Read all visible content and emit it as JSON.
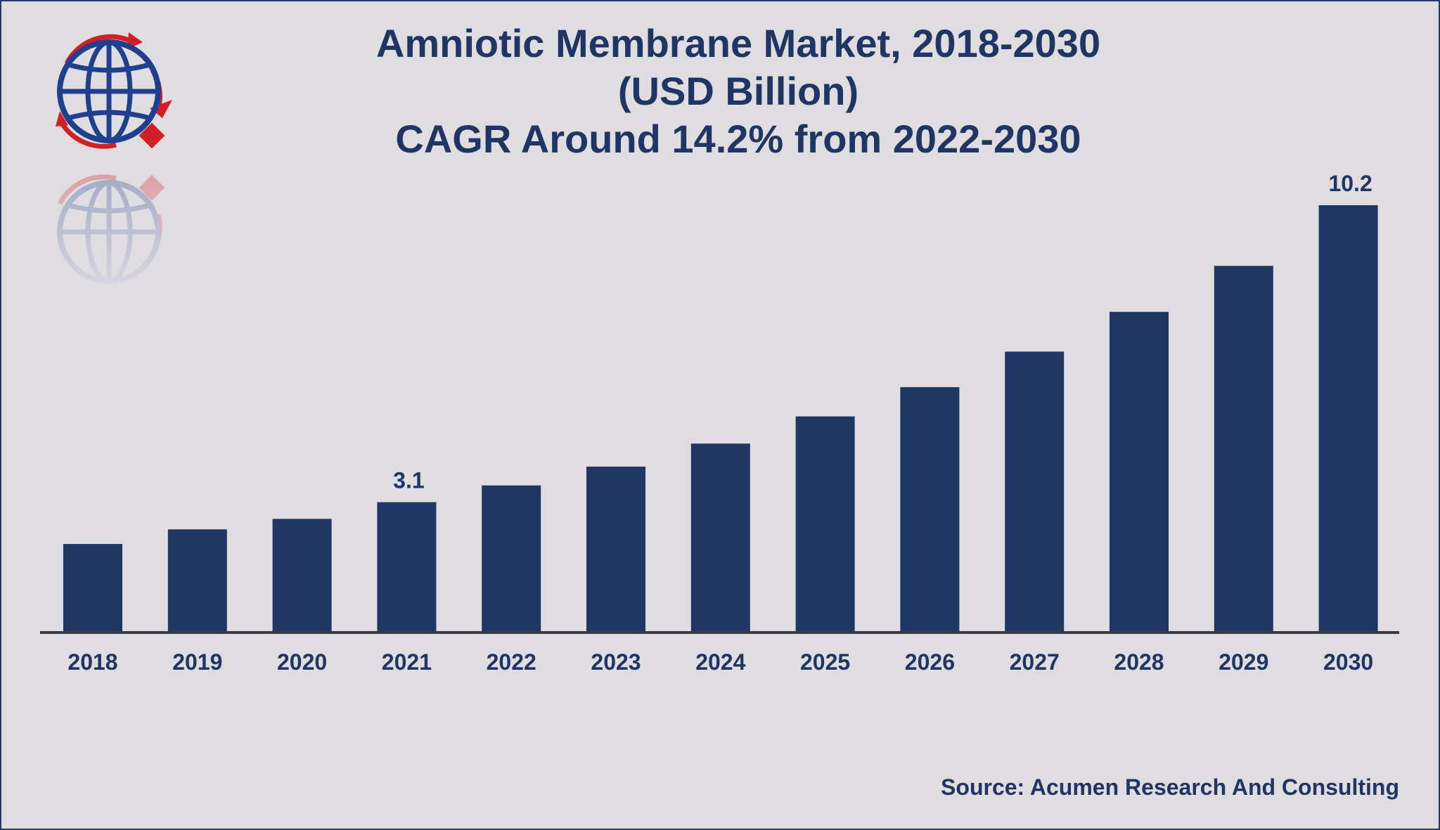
{
  "header": {
    "title_line1": "Amniotic Membrane Market, 2018-2030",
    "title_line2": "(USD Billion)",
    "title_line3": "CAGR Around 14.2% from 2022-2030"
  },
  "footer": {
    "source": "Source: Acumen Research And Consulting"
  },
  "logo": {
    "icon": "globe-logo-icon"
  },
  "colors": {
    "bar": "#213763",
    "text": "#1f3564",
    "axis": "#3a3a44",
    "logo_blue": "#1f3f8f",
    "logo_red": "#d21f26",
    "background": "#e0dde1"
  },
  "chart_data": {
    "type": "bar",
    "title": "Amniotic Membrane Market, 2018-2030 (USD Billion) CAGR Around 14.2% from 2022-2030",
    "xlabel": "",
    "ylabel": "",
    "categories": [
      "2018",
      "2019",
      "2020",
      "2021",
      "2022",
      "2023",
      "2024",
      "2025",
      "2026",
      "2027",
      "2028",
      "2029",
      "2030"
    ],
    "series": [
      {
        "values": [
          2.1,
          2.45,
          2.7,
          3.1,
          3.5,
          3.95,
          4.5,
          5.15,
          5.85,
          6.7,
          7.65,
          8.75,
          10.2
        ]
      }
    ],
    "data_labels": [
      "",
      "",
      "",
      "3.1",
      "",
      "",
      "",
      "",
      "",
      "",
      "",
      "",
      "10.2"
    ],
    "ylim": [
      0,
      10.2
    ],
    "grid": false,
    "legend": "none"
  }
}
